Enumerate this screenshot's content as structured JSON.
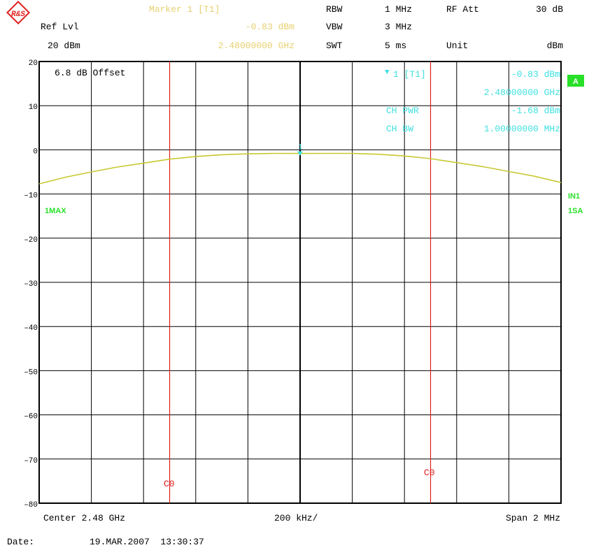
{
  "header": {
    "brand": "R&S",
    "marker_title": "Marker 1 [T1]",
    "ref_lvl_label": "Ref Lvl",
    "ref_lvl_value": "20 dBm",
    "marker_level": "-0.83 dBm",
    "marker_freq": "2.48000000 GHz",
    "rbw_label": "RBW",
    "rbw_value": "1 MHz",
    "vbw_label": "VBW",
    "vbw_value": "3 MHz",
    "swt_label": "SWT",
    "swt_value": "5 ms",
    "rf_att_label": "RF Att",
    "rf_att_value": "30 dB",
    "unit_label": "Unit",
    "unit_value": "dBm"
  },
  "overlay": {
    "offset": "6.8 dB Offset",
    "marker_symbol": "▼",
    "marker_id": "1 [T1]",
    "marker_label": "1",
    "marker_level": "-0.83 dBm",
    "marker_freq": "2.48000000 GHz",
    "ch_pwr_label": "CH PWR",
    "ch_pwr_value": "-1.68 dBm",
    "ch_bw_label": "CH BW",
    "ch_bw_value": "1.00000000 MHz",
    "cursor_label": "C0"
  },
  "side": {
    "trace_a": "A",
    "in1": "IN1",
    "sa1": "1SA",
    "max1": "1MAX"
  },
  "footer": {
    "center": "Center 2.48 GHz",
    "div": "200 kHz/",
    "span": "Span 2 MHz",
    "date_label": "Date:",
    "date_value": "19.MAR.2007  13:30:37"
  },
  "colors": {
    "trace": "#c8c832",
    "marker": "#40e0e0",
    "cursor": "#e02020",
    "info_yellow": "#e8d070",
    "green": "#28e028",
    "grid": "#000000"
  },
  "chart_data": {
    "type": "line",
    "xlim": [
      -1000,
      1000
    ],
    "ylim": [
      -80,
      20
    ],
    "yticks": [
      20,
      10,
      0,
      -10,
      -20,
      -30,
      -40,
      -50,
      -60,
      -70,
      -80
    ],
    "cursor_x": [
      -500,
      500
    ],
    "marker": {
      "x": 0,
      "y": -0.83
    },
    "series": [
      {
        "x": [
          -1000,
          -900,
          -800,
          -700,
          -600,
          -500,
          -400,
          -300,
          -200,
          -100,
          0,
          100,
          200,
          300,
          400,
          500,
          600,
          700,
          800,
          900,
          1000
        ],
        "y": [
          -7.7,
          -6.2,
          -5.0,
          -3.9,
          -3.0,
          -2.1,
          -1.5,
          -1.1,
          -0.9,
          -0.8,
          -0.83,
          -0.8,
          -0.8,
          -1.0,
          -1.4,
          -2.0,
          -2.9,
          -3.8,
          -4.9,
          -6.0,
          -7.4
        ]
      }
    ]
  }
}
